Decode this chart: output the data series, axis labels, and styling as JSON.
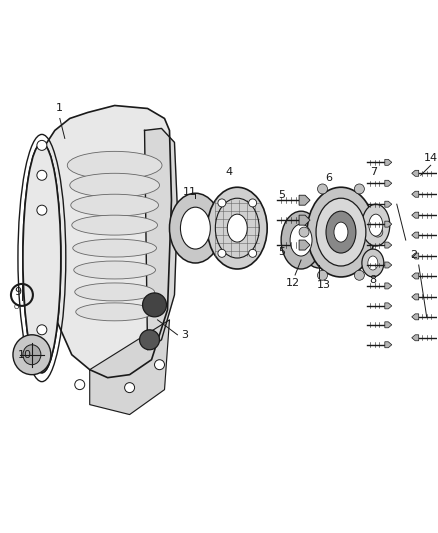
{
  "bg_color": "#ffffff",
  "figsize": [
    4.38,
    5.33
  ],
  "dpi": 100,
  "dark": "#1a1a1a",
  "gray": "#666666",
  "light_gray": "#cccccc",
  "mid_gray": "#999999",
  "case_fill": "#e8e8e8",
  "part_fill": "#d0d0d0"
}
